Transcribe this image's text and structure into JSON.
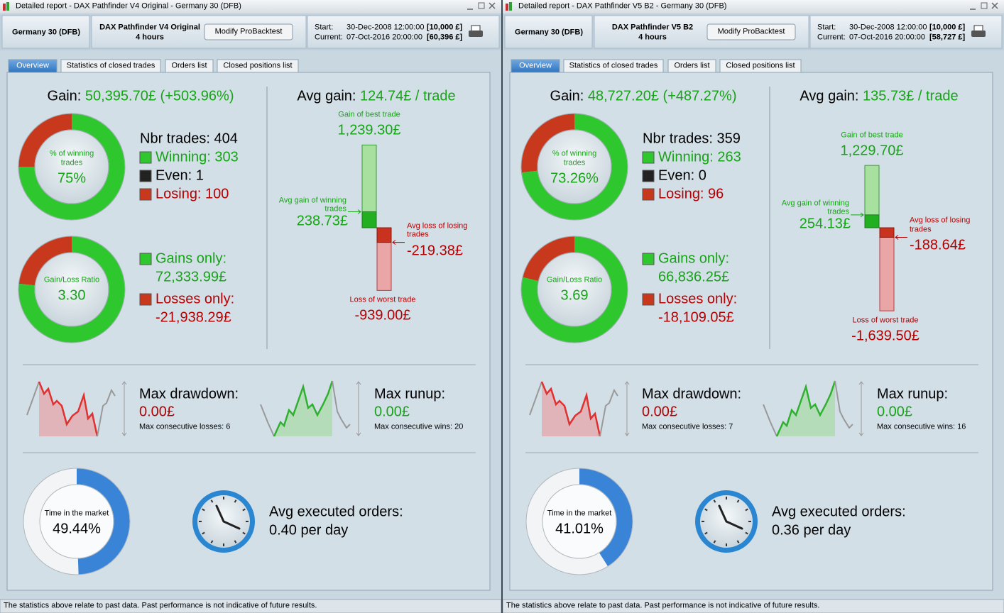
{
  "panels": [
    {
      "window_title": "Detailed report - DAX Pathfinder V4 Original - Germany 30 (DFB)",
      "instrument": "Germany 30 (DFB)",
      "strategy": "DAX Pathfinder V4 Original",
      "timeframe": "4 hours",
      "button": "Modify ProBacktest",
      "start_label": "Start:",
      "start_date": "30-Dec-2008 12:00:00",
      "start_capital": "[10,000 £]",
      "current_label": "Current:",
      "current_date": "07-Oct-2016 20:00:00",
      "current_capital": "[60,396 £]",
      "tabs": [
        "Overview",
        "Statistics of closed trades",
        "Orders list",
        "Closed positions list"
      ],
      "gain_label": "Gain:",
      "gain_value": "50,395.70£ (+503.96%)",
      "win_ring_label": "% of winning trades",
      "win_ring_value": "75%",
      "nbr_trades": "Nbr trades: 404",
      "winning": "Winning: 303",
      "even": "Even: 1",
      "losing": "Losing: 100",
      "ratio_label": "Gain/Loss Ratio",
      "ratio_value": "3.30",
      "gains_only_label": "Gains only:",
      "gains_only_value": "72,333.99£",
      "losses_only_label": "Losses only:",
      "losses_only_value": "-21,938.29£",
      "avg_gain_label": "Avg gain:",
      "avg_gain_value": "124.74£ / trade",
      "best_label": "Gain of best trade",
      "best_value": "1,239.30£",
      "avg_win_label": "Avg gain of winning trades",
      "avg_win_value": "238.73£",
      "avg_loss_label": "Avg loss of losing trades",
      "avg_loss_value": "-219.38£",
      "worst_label": "Loss of worst trade",
      "worst_value": "-939.00£",
      "drawdown_label": "Max drawdown:",
      "drawdown_value": "0.00£",
      "consec_losses": "Max consecutive losses: 6",
      "runup_label": "Max runup:",
      "runup_value": "0.00£",
      "consec_wins": "Max consecutive wins: 20",
      "time_label": "Time in the market",
      "time_value": "49.44%",
      "orders_label": "Avg executed orders:",
      "orders_value": "0.40 per day",
      "footer": "The statistics above relate to past data. Past performance is not indicative of future results."
    },
    {
      "window_title": "Detailed report - DAX Pathfinder V5 B2 - Germany 30 (DFB)",
      "instrument": "Germany 30 (DFB)",
      "strategy": "DAX Pathfinder V5 B2",
      "timeframe": "4 hours",
      "button": "Modify ProBacktest",
      "start_label": "Start:",
      "start_date": "30-Dec-2008 12:00:00",
      "start_capital": "[10,000 £]",
      "current_label": "Current:",
      "current_date": "07-Oct-2016 20:00:00",
      "current_capital": "[58,727 £]",
      "tabs": [
        "Overview",
        "Statistics of closed trades",
        "Orders list",
        "Closed positions list"
      ],
      "gain_label": "Gain:",
      "gain_value": "48,727.20£ (+487.27%)",
      "win_ring_label": "% of winning trades",
      "win_ring_value": "73.26%",
      "nbr_trades": "Nbr trades: 359",
      "winning": "Winning: 263",
      "even": "Even: 0",
      "losing": "Losing: 96",
      "ratio_label": "Gain/Loss Ratio",
      "ratio_value": "3.69",
      "gains_only_label": "Gains only:",
      "gains_only_value": "66,836.25£",
      "losses_only_label": "Losses only:",
      "losses_only_value": "-18,109.05£",
      "avg_gain_label": "Avg gain:",
      "avg_gain_value": "135.73£ / trade",
      "best_label": "Gain of best trade",
      "best_value": "1,229.70£",
      "avg_win_label": "Avg gain of winning trades",
      "avg_win_value": "254.13£",
      "avg_loss_label": "Avg loss of losing trades",
      "avg_loss_value": "-188.64£",
      "worst_label": "Loss of worst trade",
      "worst_value": "-1,639.50£",
      "drawdown_label": "Max drawdown:",
      "drawdown_value": "0.00£",
      "consec_losses": "Max consecutive losses: 7",
      "runup_label": "Max runup:",
      "runup_value": "0.00£",
      "consec_wins": "Max consecutive wins: 16",
      "time_label": "Time in the market",
      "time_value": "41.01%",
      "orders_label": "Avg executed orders:",
      "orders_value": "0.36 per day",
      "footer": "The statistics above relate to past data. Past performance is not indicative of future results."
    }
  ]
}
